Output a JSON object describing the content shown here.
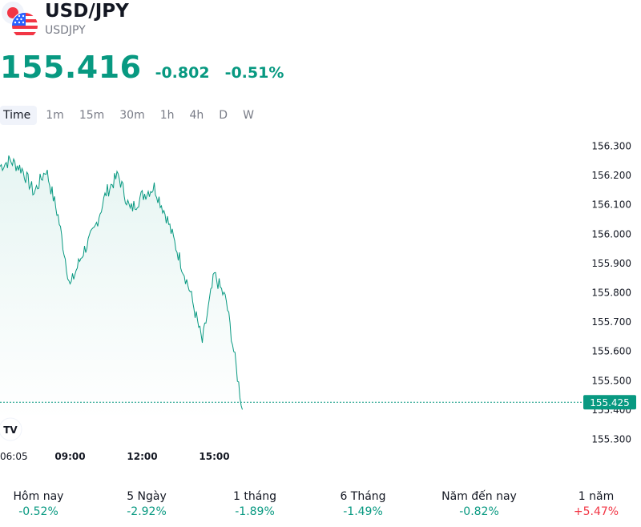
{
  "header": {
    "title": "USD/JPY",
    "symbol": "USDJPY",
    "price": "155.416",
    "change": "-0.802",
    "change_percent": "-0.51%",
    "flag_icons": [
      "japan-flag-icon",
      "us-flag-icon"
    ]
  },
  "tabs": [
    {
      "label": "Time",
      "active": true
    },
    {
      "label": "1m"
    },
    {
      "label": "15m"
    },
    {
      "label": "30m"
    },
    {
      "label": "1h"
    },
    {
      "label": "4h"
    },
    {
      "label": "D"
    },
    {
      "label": "W"
    }
  ],
  "colors": {
    "accent": "#089981",
    "negative": "#f23645",
    "text": "#131722",
    "muted": "#787b86"
  },
  "chart_data": {
    "type": "area",
    "x_ticks": [
      "06:05",
      "09:00",
      "12:00",
      "15:00"
    ],
    "y_ticks": [
      "156.300",
      "156.200",
      "156.100",
      "156.000",
      "155.900",
      "155.800",
      "155.700",
      "155.600",
      "155.500",
      "155.400",
      "155.300"
    ],
    "ylim": [
      155.27,
      156.34
    ],
    "last_price_label": "155.425",
    "last_price": 155.425,
    "logo_text": "TV",
    "x": [
      "06:05",
      "06:30",
      "07:00",
      "07:30",
      "08:00",
      "08:30",
      "09:00",
      "09:30",
      "10:00",
      "10:30",
      "11:00",
      "11:30",
      "12:00",
      "12:30",
      "13:00",
      "13:30",
      "14:00",
      "14:30",
      "15:00",
      "15:30",
      "16:10"
    ],
    "values": [
      156.23,
      156.25,
      156.22,
      156.14,
      156.22,
      156.06,
      155.82,
      155.93,
      156.01,
      156.14,
      156.2,
      156.08,
      156.13,
      156.16,
      156.06,
      155.93,
      155.8,
      155.63,
      155.86,
      155.77,
      155.4
    ]
  },
  "performance": [
    {
      "label": "Hôm nay",
      "value": "-0.52%",
      "dir": "neg"
    },
    {
      "label": "5 Ngày",
      "value": "-2.92%",
      "dir": "neg"
    },
    {
      "label": "1 tháng",
      "value": "-1.89%",
      "dir": "neg"
    },
    {
      "label": "6 Tháng",
      "value": "-1.49%",
      "dir": "neg"
    },
    {
      "label": "Năm đến nay",
      "value": "-0.82%",
      "dir": "neg"
    },
    {
      "label": "1 năm",
      "value": "+5.47%",
      "dir": "pos"
    }
  ]
}
